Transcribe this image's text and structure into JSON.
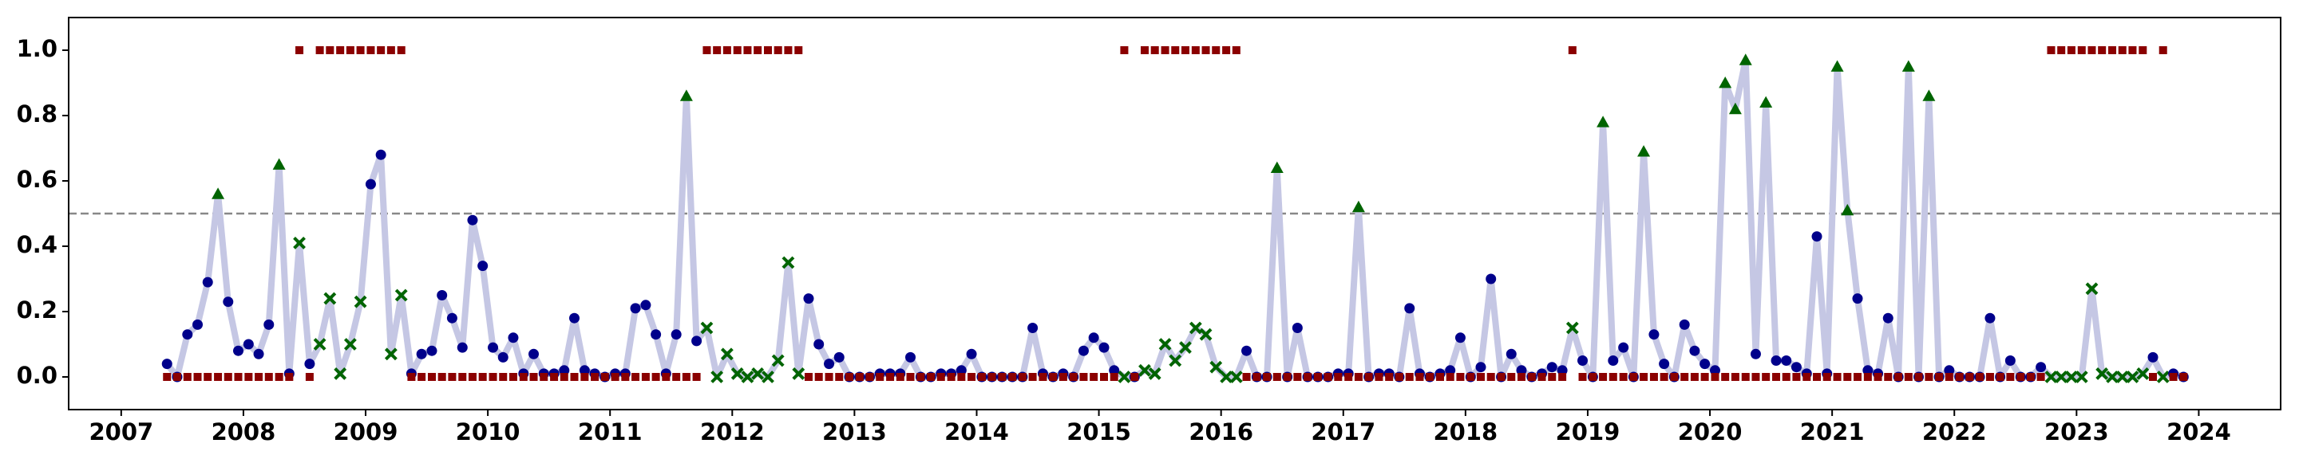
{
  "chart_data": {
    "type": "line",
    "x": [
      2007.375,
      2007.458,
      2007.542,
      2007.625,
      2007.708,
      2007.792,
      2007.875,
      2007.958,
      2008.042,
      2008.125,
      2008.208,
      2008.292,
      2008.375,
      2008.458,
      2008.542,
      2008.625,
      2008.708,
      2008.792,
      2008.875,
      2008.958,
      2009.042,
      2009.125,
      2009.208,
      2009.292,
      2009.375,
      2009.458,
      2009.542,
      2009.625,
      2009.708,
      2009.792,
      2009.875,
      2009.958,
      2010.042,
      2010.125,
      2010.208,
      2010.292,
      2010.375,
      2010.458,
      2010.542,
      2010.625,
      2010.708,
      2010.792,
      2010.875,
      2010.958,
      2011.042,
      2011.125,
      2011.208,
      2011.292,
      2011.375,
      2011.458,
      2011.542,
      2011.625,
      2011.708,
      2011.792,
      2011.875,
      2011.958,
      2012.042,
      2012.125,
      2012.208,
      2012.292,
      2012.375,
      2012.458,
      2012.542,
      2012.625,
      2012.708,
      2012.792,
      2012.875,
      2012.958,
      2013.042,
      2013.125,
      2013.208,
      2013.292,
      2013.375,
      2013.458,
      2013.542,
      2013.625,
      2013.708,
      2013.792,
      2013.875,
      2013.958,
      2014.042,
      2014.125,
      2014.208,
      2014.292,
      2014.375,
      2014.458,
      2014.542,
      2014.625,
      2014.708,
      2014.792,
      2014.875,
      2014.958,
      2015.042,
      2015.125,
      2015.208,
      2015.292,
      2015.375,
      2015.458,
      2015.542,
      2015.625,
      2015.708,
      2015.792,
      2015.875,
      2015.958,
      2016.042,
      2016.125,
      2016.208,
      2016.292,
      2016.375,
      2016.458,
      2016.542,
      2016.625,
      2016.708,
      2016.792,
      2016.875,
      2016.958,
      2017.042,
      2017.125,
      2017.208,
      2017.292,
      2017.375,
      2017.458,
      2017.542,
      2017.625,
      2017.708,
      2017.792,
      2017.875,
      2017.958,
      2018.042,
      2018.125,
      2018.208,
      2018.292,
      2018.375,
      2018.458,
      2018.542,
      2018.625,
      2018.708,
      2018.792,
      2018.875,
      2018.958,
      2019.042,
      2019.125,
      2019.208,
      2019.292,
      2019.375,
      2019.458,
      2019.542,
      2019.625,
      2019.708,
      2019.792,
      2019.875,
      2019.958,
      2020.042,
      2020.125,
      2020.208,
      2020.292,
      2020.375,
      2020.458,
      2020.542,
      2020.625,
      2020.708,
      2020.792,
      2020.875,
      2020.958,
      2021.042,
      2021.125,
      2021.208,
      2021.292,
      2021.375,
      2021.458,
      2021.542,
      2021.625,
      2021.708,
      2021.792,
      2021.875,
      2021.958,
      2022.042,
      2022.125,
      2022.208,
      2022.292,
      2022.375,
      2022.458,
      2022.542,
      2022.625,
      2022.708,
      2022.792,
      2022.875,
      2022.958,
      2023.042,
      2023.125,
      2023.208,
      2023.292,
      2023.375,
      2023.458,
      2023.542,
      2023.625,
      2023.708,
      2023.792,
      2023.875
    ],
    "series": [
      {
        "color": "#c5c7e4",
        "values": [
          0.04,
          0.0,
          0.13,
          0.16,
          0.29,
          0.56,
          0.23,
          0.08,
          0.1,
          0.07,
          0.16,
          0.65,
          0.01,
          0.41,
          0.04,
          0.1,
          0.24,
          0.01,
          0.1,
          0.23,
          0.59,
          0.68,
          0.07,
          0.25,
          0.01,
          0.07,
          0.08,
          0.25,
          0.18,
          0.09,
          0.48,
          0.34,
          0.09,
          0.06,
          0.12,
          0.01,
          0.07,
          0.01,
          0.01,
          0.02,
          0.18,
          0.02,
          0.01,
          0.0,
          0.01,
          0.01,
          0.21,
          0.22,
          0.13,
          0.01,
          0.13,
          0.86,
          0.11,
          0.15,
          0.0,
          0.07,
          0.01,
          0.0,
          0.01,
          0.0,
          0.05,
          0.35,
          0.01,
          0.24,
          0.1,
          0.04,
          0.06,
          0.0,
          0.0,
          0.0,
          0.01,
          0.01,
          0.01,
          0.06,
          0.0,
          0.0,
          0.01,
          0.01,
          0.02,
          0.07,
          0.0,
          0.0,
          0.0,
          0.0,
          0.0,
          0.15,
          0.01,
          0.0,
          0.01,
          0.0,
          0.08,
          0.12,
          0.09,
          0.02,
          0.0,
          0.0,
          0.02,
          0.01,
          0.1,
          0.05,
          0.09,
          0.15,
          0.13,
          0.03,
          0.0,
          0.0,
          0.08,
          0.0,
          0.0,
          0.64,
          0.0,
          0.15,
          0.0,
          0.0,
          0.0,
          0.01,
          0.01,
          0.52,
          0.0,
          0.01,
          0.01,
          0.0,
          0.21,
          0.01,
          0.0,
          0.01,
          0.02,
          0.12,
          0.0,
          0.03,
          0.3,
          0.0,
          0.07,
          0.02,
          0.0,
          0.01,
          0.03,
          0.02,
          0.15,
          0.05,
          0.0,
          0.78,
          0.05,
          0.09,
          0.0,
          0.69,
          0.13,
          0.04,
          0.0,
          0.16,
          0.08,
          0.04,
          0.02,
          0.9,
          0.82,
          0.97,
          0.07,
          0.84,
          0.05,
          0.05,
          0.03,
          0.01,
          0.43,
          0.01,
          0.95,
          0.51,
          0.24,
          0.02,
          0.01,
          0.18,
          0.0,
          0.95,
          0.0,
          0.86,
          0.0,
          0.02,
          0.0,
          0.0,
          0.0,
          0.18,
          0.0,
          0.05,
          0.0,
          0.0,
          0.03,
          0.0,
          0.0,
          0.0,
          0.0,
          0.27,
          0.01,
          0.0,
          0.0,
          0.0,
          0.01,
          0.06,
          0.0,
          0.01,
          0.0
        ],
        "markers": [
          "o",
          "o",
          "o",
          "o",
          "o",
          "^",
          "o",
          "o",
          "o",
          "o",
          "o",
          "^",
          "o",
          "x",
          "o",
          "x",
          "x",
          "x",
          "x",
          "x",
          "o",
          "o",
          "x",
          "x",
          "o",
          "o",
          "o",
          "o",
          "o",
          "o",
          "o",
          "o",
          "o",
          "o",
          "o",
          "o",
          "o",
          "o",
          "o",
          "o",
          "o",
          "o",
          "o",
          "o",
          "o",
          "o",
          "o",
          "o",
          "o",
          "o",
          "o",
          "^",
          "o",
          "x",
          "x",
          "x",
          "x",
          "x",
          "x",
          "x",
          "x",
          "x",
          "x",
          "o",
          "o",
          "o",
          "o",
          "o",
          "o",
          "o",
          "o",
          "o",
          "o",
          "o",
          "o",
          "o",
          "o",
          "o",
          "o",
          "o",
          "o",
          "o",
          "o",
          "o",
          "o",
          "o",
          "o",
          "o",
          "o",
          "o",
          "o",
          "o",
          "o",
          "o",
          "x",
          "o",
          "x",
          "x",
          "x",
          "x",
          "x",
          "x",
          "x",
          "x",
          "x",
          "x",
          "o",
          "o",
          "o",
          "^",
          "o",
          "o",
          "o",
          "o",
          "o",
          "o",
          "o",
          "^",
          "o",
          "o",
          "o",
          "o",
          "o",
          "o",
          "o",
          "o",
          "o",
          "o",
          "o",
          "o",
          "o",
          "o",
          "o",
          "o",
          "o",
          "o",
          "o",
          "o",
          "x",
          "o",
          "o",
          "^",
          "o",
          "o",
          "o",
          "^",
          "o",
          "o",
          "o",
          "o",
          "o",
          "o",
          "o",
          "^",
          "^",
          "^",
          "o",
          "^",
          "o",
          "o",
          "o",
          "o",
          "o",
          "o",
          "^",
          "^",
          "o",
          "o",
          "o",
          "o",
          "o",
          "^",
          "o",
          "^",
          "o",
          "o",
          "o",
          "o",
          "o",
          "o",
          "o",
          "o",
          "o",
          "o",
          "o",
          "x",
          "x",
          "x",
          "x",
          "x",
          "x",
          "x",
          "x",
          "x",
          "x",
          "o",
          "x",
          "o",
          "o"
        ],
        "marker_colors": {
          "o": "#00008b",
          "^": "#006400",
          "x": "#006400"
        }
      },
      {
        "color": "#8b0000",
        "marker": "s",
        "values": [
          0,
          0,
          0,
          0,
          0,
          0,
          0,
          0,
          0,
          0,
          0,
          0,
          0,
          1,
          0,
          1,
          1,
          1,
          1,
          1,
          1,
          1,
          1,
          1,
          0,
          0,
          0,
          0,
          0,
          0,
          0,
          0,
          0,
          0,
          0,
          0,
          0,
          0,
          0,
          0,
          0,
          0,
          0,
          0,
          0,
          0,
          0,
          0,
          0,
          0,
          0,
          0,
          0,
          1,
          1,
          1,
          1,
          1,
          1,
          1,
          1,
          1,
          1,
          0,
          0,
          0,
          0,
          0,
          0,
          0,
          0,
          0,
          0,
          0,
          0,
          0,
          0,
          0,
          0,
          0,
          0,
          0,
          0,
          0,
          0,
          0,
          0,
          0,
          0,
          0,
          0,
          0,
          0,
          0,
          1,
          0,
          1,
          1,
          1,
          1,
          1,
          1,
          1,
          1,
          1,
          1,
          0,
          0,
          0,
          0,
          0,
          0,
          0,
          0,
          0,
          0,
          0,
          0,
          0,
          0,
          0,
          0,
          0,
          0,
          0,
          0,
          0,
          0,
          0,
          0,
          0,
          0,
          0,
          0,
          0,
          0,
          0,
          0,
          1,
          0,
          0,
          0,
          0,
          0,
          0,
          0,
          0,
          0,
          0,
          0,
          0,
          0,
          0,
          0,
          0,
          0,
          0,
          0,
          0,
          0,
          0,
          0,
          0,
          0,
          0,
          0,
          0,
          0,
          0,
          0,
          0,
          0,
          0,
          0,
          0,
          0,
          0,
          0,
          0,
          0,
          0,
          0,
          0,
          0,
          0,
          1,
          1,
          1,
          1,
          1,
          1,
          1,
          1,
          1,
          1,
          0,
          1,
          0,
          0
        ]
      }
    ],
    "xlim": [
      2006.57,
      2024.67
    ],
    "xticks": [
      2007,
      2008,
      2009,
      2010,
      2011,
      2012,
      2013,
      2014,
      2015,
      2016,
      2017,
      2018,
      2019,
      2020,
      2021,
      2022,
      2023,
      2024
    ],
    "ylim": [
      -0.1,
      1.1
    ],
    "yticks": [
      {
        "value": 0,
        "label": "0.0"
      },
      {
        "value": 0.2,
        "label": "0.2"
      },
      {
        "value": 0.4,
        "label": "0.4"
      },
      {
        "value": 0.6,
        "label": "0.6"
      },
      {
        "value": 0.8,
        "label": "0.8"
      },
      {
        "value": 1,
        "label": "1.0"
      }
    ],
    "hline": 0.5
  }
}
